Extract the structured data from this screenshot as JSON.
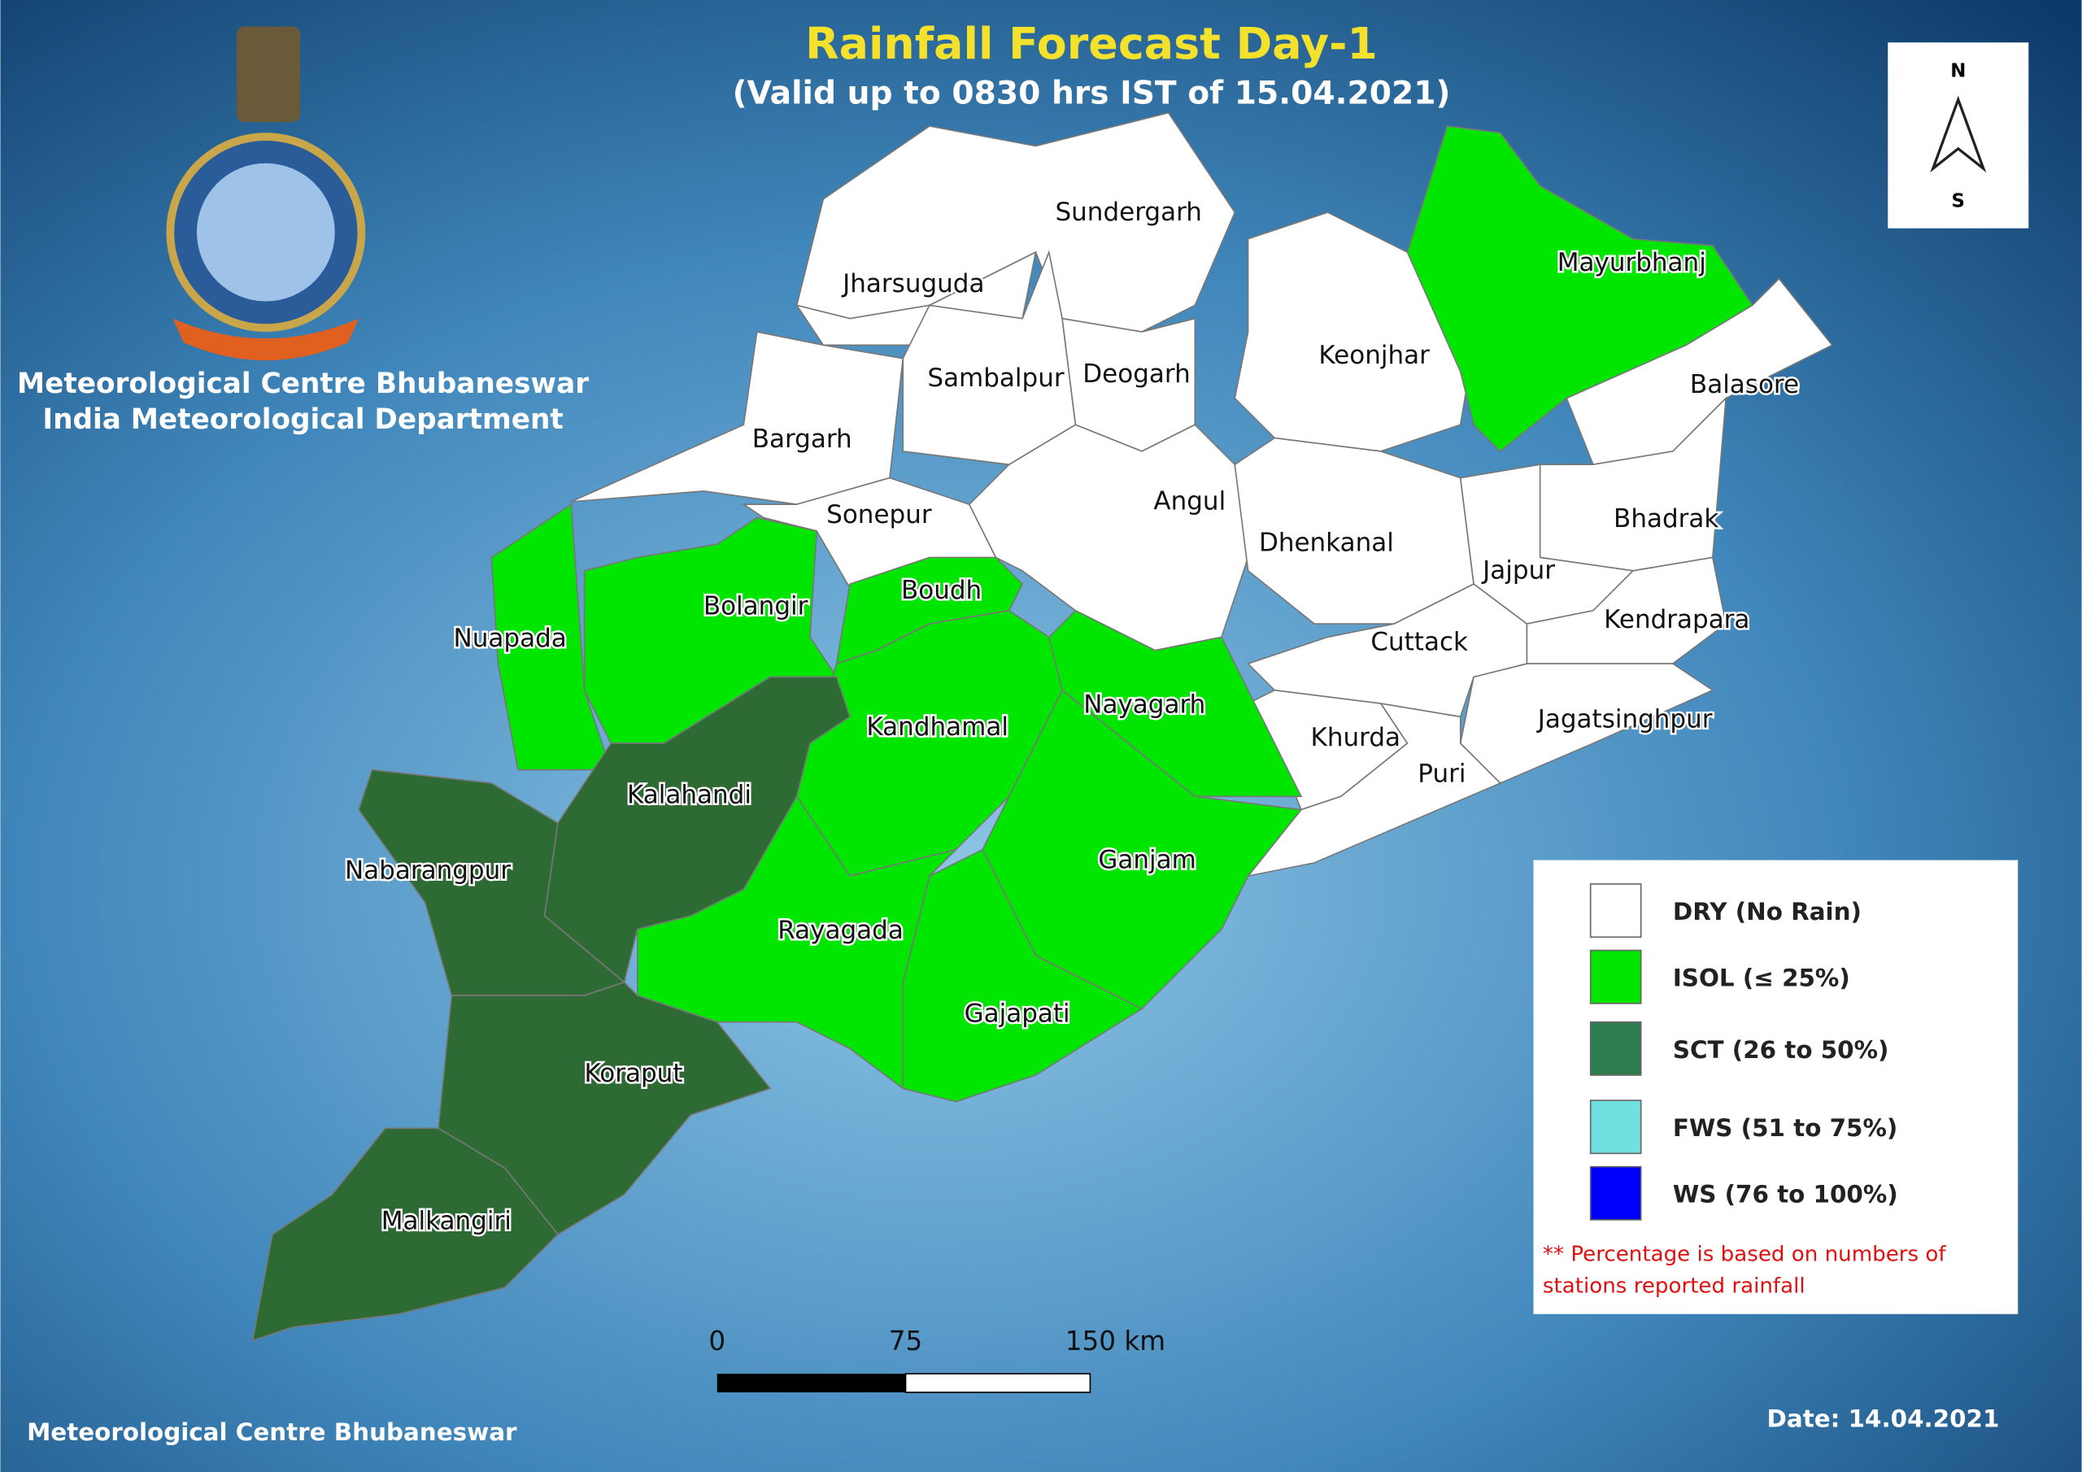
{
  "header": {
    "title": "Rainfall Forecast Day-1",
    "subtitle": "(Valid up to 0830 hrs IST of 15.04.2021)"
  },
  "organization": {
    "name": "Meteorological Centre Bhubaneswar",
    "department": "India Meteorological Department"
  },
  "north_arrow": {
    "north": "N",
    "south": "S"
  },
  "districts": [
    {
      "name": "Sundergarh",
      "color": "#ffffff"
    },
    {
      "name": "Jharsuguda",
      "color": "#ffffff"
    },
    {
      "name": "Bargarh",
      "color": "#ffffff"
    },
    {
      "name": "Sambalpur",
      "color": "#ffffff"
    },
    {
      "name": "Deogarh",
      "color": "#ffffff"
    },
    {
      "name": "Keonjhar",
      "color": "#ffffff"
    },
    {
      "name": "Mayurbhanj",
      "color": "#00e600"
    },
    {
      "name": "Balasore",
      "color": "#ffffff"
    },
    {
      "name": "Bhadrak",
      "color": "#ffffff"
    },
    {
      "name": "Nuapada",
      "color": "#00e600"
    },
    {
      "name": "Bolangir",
      "color": "#00e600"
    },
    {
      "name": "Sonepur",
      "color": "#ffffff"
    },
    {
      "name": "Angul",
      "color": "#ffffff"
    },
    {
      "name": "Dhenkanal",
      "color": "#ffffff"
    },
    {
      "name": "Jajpur",
      "color": "#ffffff"
    },
    {
      "name": "Kendrapara",
      "color": "#ffffff"
    },
    {
      "name": "Jagatsinghpur",
      "color": "#ffffff"
    },
    {
      "name": "Cuttack",
      "color": "#ffffff"
    },
    {
      "name": "Khurda",
      "color": "#ffffff"
    },
    {
      "name": "Puri",
      "color": "#ffffff"
    },
    {
      "name": "Boudh",
      "color": "#00e600"
    },
    {
      "name": "Kandhamal",
      "color": "#00e600"
    },
    {
      "name": "Nayagarh",
      "color": "#00e600"
    },
    {
      "name": "Ganjam",
      "color": "#00e600"
    },
    {
      "name": "Gajapati",
      "color": "#00e600"
    },
    {
      "name": "Rayagada",
      "color": "#00e600"
    },
    {
      "name": "Kalahandi",
      "color": "#2e6b34"
    },
    {
      "name": "Nabarangpur",
      "color": "#2e6b34"
    },
    {
      "name": "Koraput",
      "color": "#2e6b34"
    },
    {
      "name": "Malkangiri",
      "color": "#2e6b34"
    }
  ],
  "legend": {
    "items": [
      {
        "label": "DRY (No Rain)",
        "color": "#ffffff"
      },
      {
        "label": "ISOL (≤ 25%)",
        "color": "#00e600"
      },
      {
        "label": "SCT (26 to 50%)",
        "color": "#2e7d4f"
      },
      {
        "label": "FWS (51 to 75%)",
        "color": "#6fe0e0"
      },
      {
        "label": "WS (76 to 100%)",
        "color": "#0000ff"
      }
    ],
    "note": [
      "** Percentage is based on numbers of",
      "stations reported rainfall"
    ]
  },
  "scale_bar": {
    "labels": [
      "0",
      "75",
      "150 km"
    ]
  },
  "footer": {
    "source": "Meteorological Centre Bhubaneswar",
    "date": "Date: 14.04.2021"
  }
}
